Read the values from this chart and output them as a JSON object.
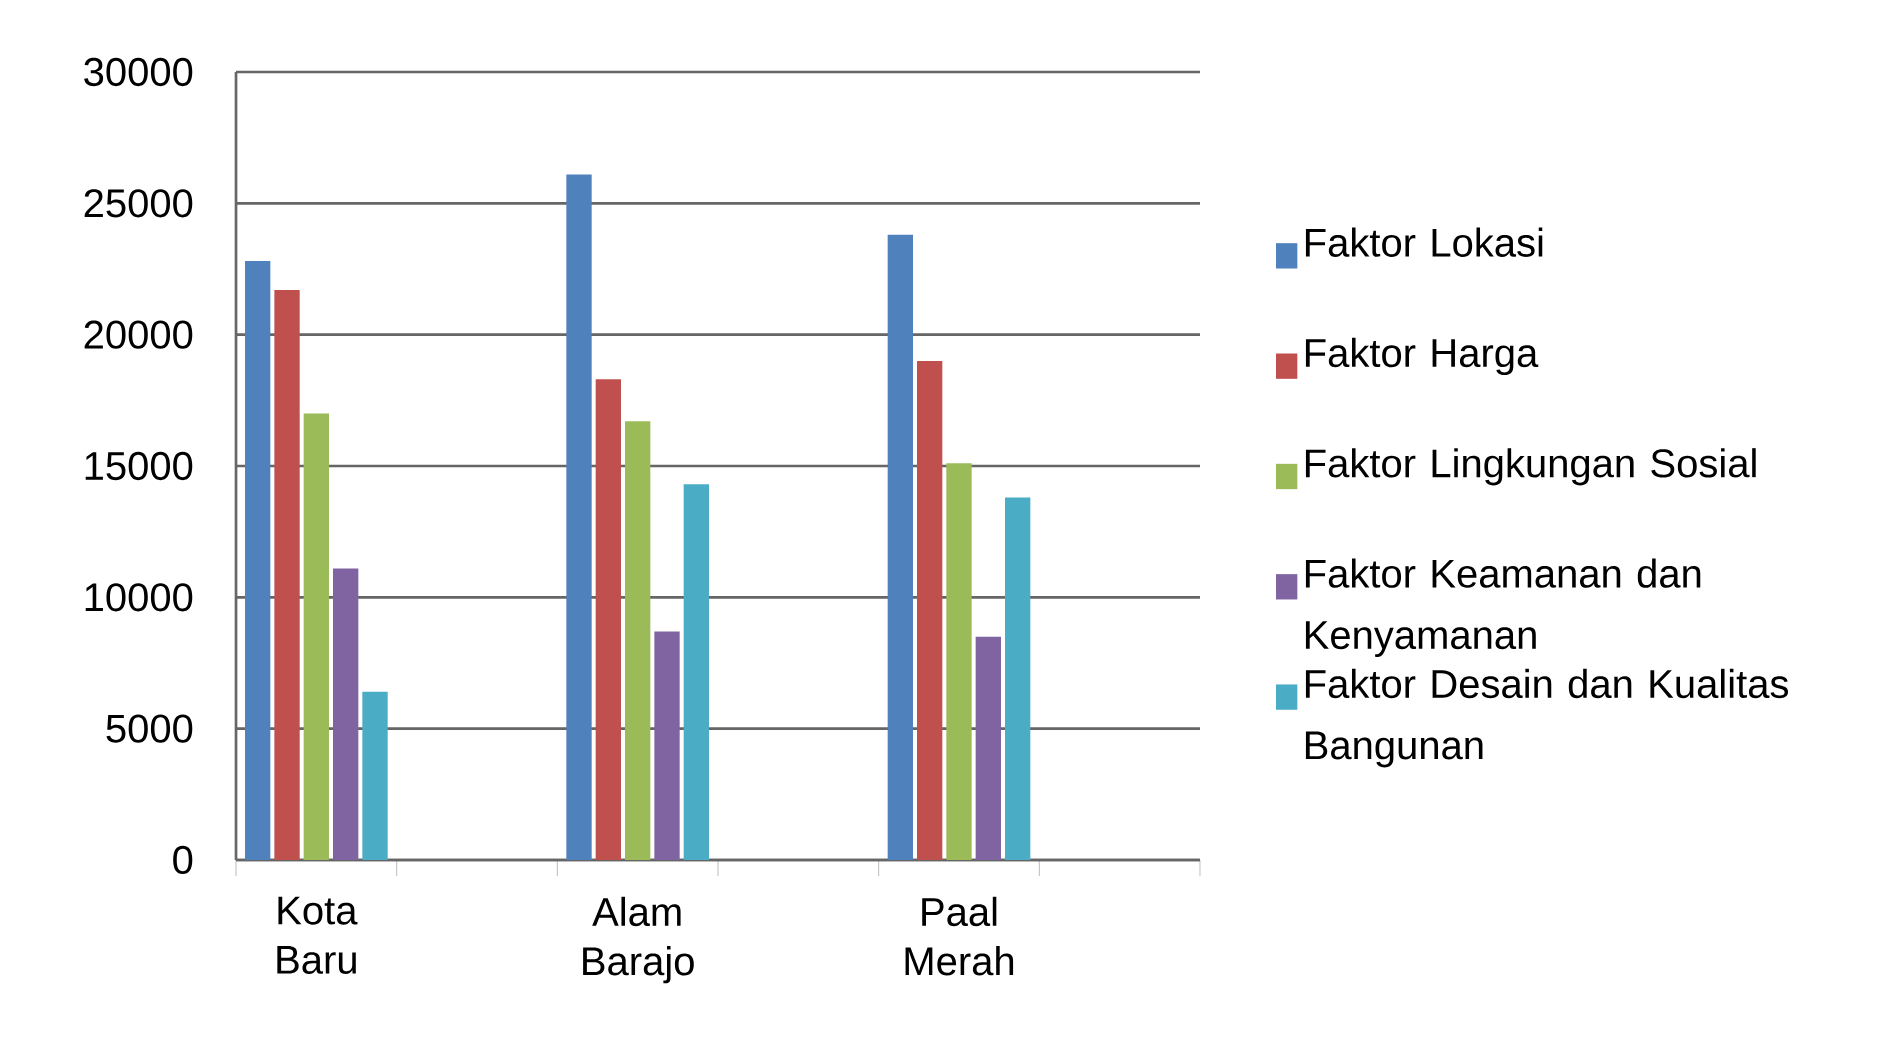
{
  "chart_data": {
    "type": "bar",
    "categories": [
      "Kota Baru",
      null,
      "Alam Barajo",
      null,
      "Paal Merah",
      null
    ],
    "series": [
      {
        "name": "Faktor Lokasi",
        "color": "#4f81bd",
        "values": [
          22800,
          null,
          26100,
          null,
          23800,
          null
        ]
      },
      {
        "name": "Faktor Harga",
        "color": "#c0504d",
        "values": [
          21700,
          null,
          18300,
          null,
          19000,
          null
        ]
      },
      {
        "name": "Faktor Lingkungan Sosial",
        "color": "#9bbb59",
        "values": [
          17000,
          null,
          16700,
          null,
          15100,
          null
        ]
      },
      {
        "name": "Faktor Keamanan dan Kenyamanan",
        "color": "#8064a2",
        "values": [
          11100,
          null,
          8700,
          null,
          8500,
          null
        ]
      },
      {
        "name": "Faktor Desain dan Kualitas Bangunan",
        "color": "#4bacc6",
        "values": [
          6400,
          null,
          14300,
          null,
          13800,
          null
        ]
      }
    ],
    "ylim": [
      0,
      30000
    ],
    "yticks": [
      0,
      5000,
      10000,
      15000,
      20000,
      25000,
      30000
    ],
    "grid": "y",
    "legend": "right"
  }
}
